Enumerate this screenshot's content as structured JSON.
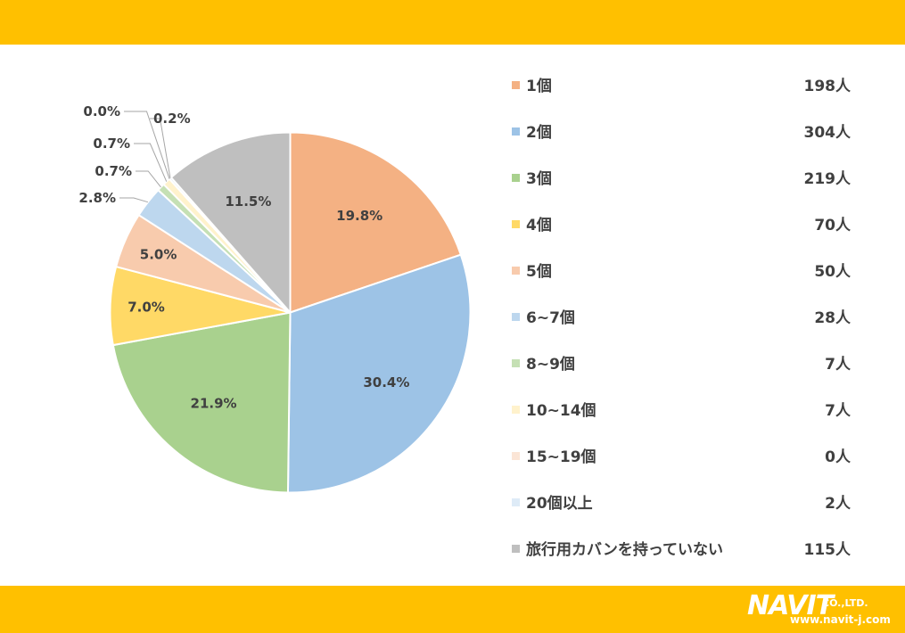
{
  "colors": {
    "band": "#ffc000",
    "text": "#404040",
    "leader": "#a6a6a6"
  },
  "chart_data": {
    "type": "pie",
    "categories": [
      "1個",
      "2個",
      "3個",
      "4個",
      "5個",
      "6~7個",
      "8~9個",
      "10~14個",
      "15~19個",
      "20個以上",
      "旅行用カバンを持っていない"
    ],
    "values": [
      198,
      304,
      219,
      70,
      50,
      28,
      7,
      7,
      0,
      2,
      115
    ],
    "value_labels": [
      "198人",
      "304人",
      "219人",
      "70人",
      "50人",
      "28人",
      "7人",
      "7人",
      "0人",
      "2人",
      "115人"
    ],
    "percent_labels": [
      "19.8%",
      "30.4%",
      "21.9%",
      "7.0%",
      "5.0%",
      "2.8%",
      "0.7%",
      "0.7%",
      "0.0%",
      "0.2%",
      "11.5%"
    ],
    "colors": [
      "#f4b183",
      "#9dc3e6",
      "#a9d18e",
      "#ffd966",
      "#f8cbad",
      "#bdd7ee",
      "#c5e0b4",
      "#fff2cc",
      "#fbe5d6",
      "#deebf7",
      "#bfbfbf"
    ],
    "legend_placement": "right"
  },
  "logo": {
    "name": "NAVIT",
    "suffix": "CO.,LTD.",
    "url": "www.navit-j.com"
  }
}
